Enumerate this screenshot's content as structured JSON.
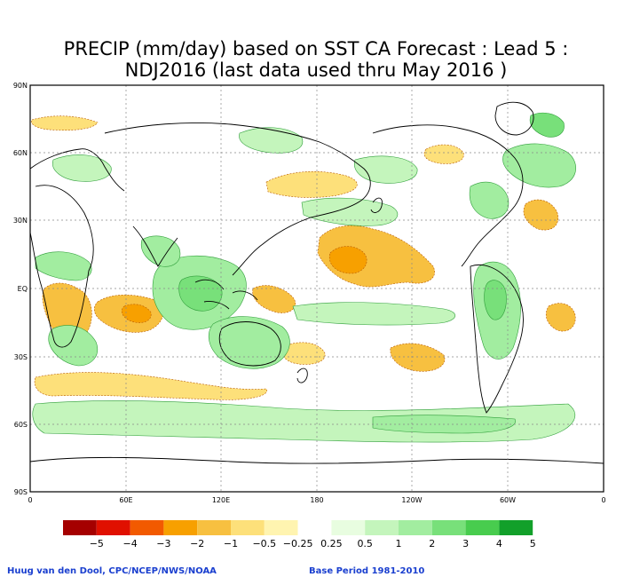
{
  "title_line1": "PRECIP (mm/day) based on SST CA Forecast : Lead 5 :",
  "title_line2": "NDJ2016 (last data used thru May 2016 )",
  "lat_labels": [
    "90N",
    "60N",
    "30N",
    "EQ",
    "30S",
    "60S",
    "90S"
  ],
  "lon_labels": [
    "0",
    "60E",
    "120E",
    "180",
    "120W",
    "60W",
    "0"
  ],
  "legend": {
    "labels": [
      "−5",
      "−4",
      "−3",
      "−2",
      "−1",
      "−0.5",
      "−0.25",
      "0.25",
      "0.5",
      "1",
      "2",
      "3",
      "4",
      "5"
    ],
    "colors": [
      "#a50000",
      "#e01000",
      "#f25a00",
      "#f7a000",
      "#f7c040",
      "#fde07a",
      "#fff4b0",
      "#ffffff",
      "#e8fde0",
      "#c4f5bc",
      "#a2eda0",
      "#78e07a",
      "#48cc4e",
      "#12a02a"
    ]
  },
  "footer_left": "Huug van den Dool, CPC/NCEP/NWS/NOAA",
  "footer_right": "Base Period 1981-2010",
  "map_colors": {
    "dry_light": "#fde07a",
    "dry_mid": "#f7c040",
    "dry_strong": "#f7a000",
    "wet_light": "#c4f5bc",
    "wet_mid": "#a2eda0",
    "wet_strong": "#78e07a",
    "coast": "#000000",
    "grid": "#888888"
  }
}
